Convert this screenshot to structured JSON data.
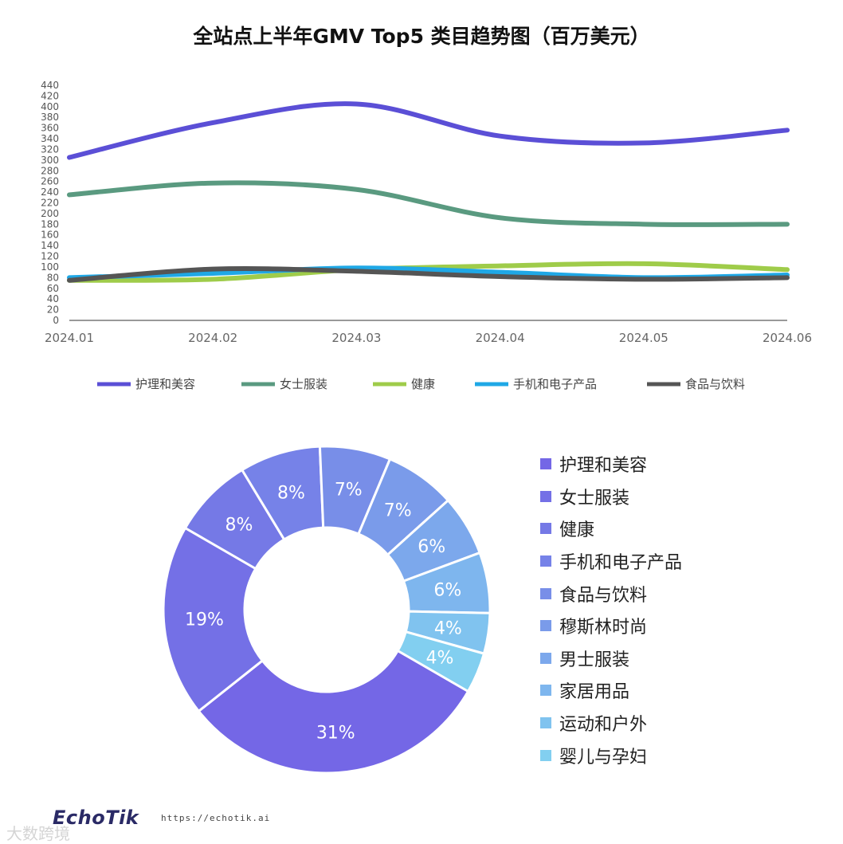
{
  "title": "全站点上半年GMV Top5 类目趋势图（百万美元）",
  "chart_data": [
    {
      "type": "line",
      "x": [
        "2024.01",
        "2024.02",
        "2024.03",
        "2024.04",
        "2024.05",
        "2024.06"
      ],
      "ylim": [
        0,
        440
      ],
      "yticks": [
        0,
        20,
        40,
        60,
        80,
        100,
        120,
        140,
        160,
        180,
        200,
        220,
        240,
        260,
        280,
        300,
        320,
        340,
        360,
        380,
        400,
        420,
        440
      ],
      "grid": false,
      "legend": "bottom",
      "series": [
        {
          "name": "护理和美容",
          "color": "#5b4fd6",
          "values": [
            305,
            370,
            405,
            345,
            332,
            356
          ]
        },
        {
          "name": "女士服装",
          "color": "#5a9a80",
          "values": [
            235,
            257,
            245,
            192,
            180,
            180
          ]
        },
        {
          "name": "健康",
          "color": "#9fcc4a",
          "values": [
            75,
            77,
            95,
            102,
            106,
            95
          ]
        },
        {
          "name": "手机和电子产品",
          "color": "#1fa8e6",
          "values": [
            80,
            88,
            98,
            90,
            80,
            85
          ]
        },
        {
          "name": "食品与饮料",
          "color": "#555555",
          "values": [
            75,
            96,
            92,
            82,
            77,
            80
          ]
        }
      ]
    },
    {
      "type": "pie",
      "donut": true,
      "legend": "right",
      "slices": [
        {
          "name": "护理和美容",
          "value": 31,
          "label": "31%",
          "color": "#7467e6"
        },
        {
          "name": "女士服装",
          "value": 19,
          "label": "19%",
          "color": "#7470e6"
        },
        {
          "name": "健康",
          "value": 8,
          "label": "8%",
          "color": "#7579e6"
        },
        {
          "name": "手机和电子产品",
          "value": 8,
          "label": "8%",
          "color": "#7682e8"
        },
        {
          "name": "食品与饮料",
          "value": 7,
          "label": "7%",
          "color": "#788ee8"
        },
        {
          "name": "穆斯林时尚",
          "value": 7,
          "label": "7%",
          "color": "#7a9bea"
        },
        {
          "name": "男士服装",
          "value": 6,
          "label": "6%",
          "color": "#7ca8ec"
        },
        {
          "name": "家居用品",
          "value": 6,
          "label": "6%",
          "color": "#7eb6ee"
        },
        {
          "name": "运动和户外",
          "value": 4,
          "label": "4%",
          "color": "#80c3ef"
        },
        {
          "name": "婴儿与孕妇",
          "value": 4,
          "label": "4%",
          "color": "#82cff0"
        }
      ]
    }
  ],
  "footer": {
    "logo": "EchoTik",
    "url": "https://echotik.ai",
    "watermark": "大数跨境"
  }
}
